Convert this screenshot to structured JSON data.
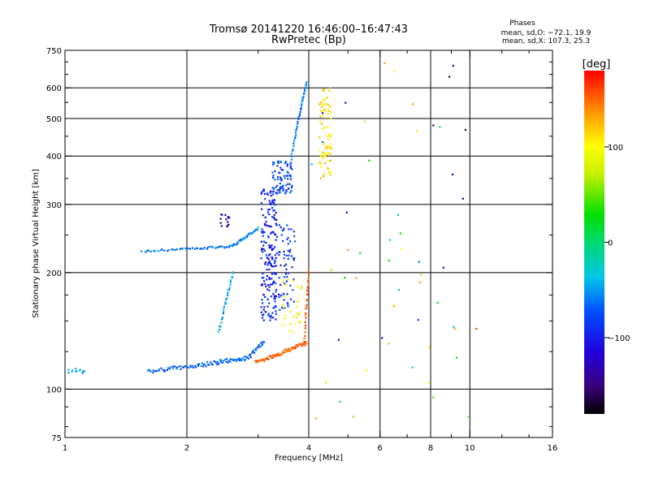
{
  "chart_data": {
    "type": "scatter",
    "title": "Tromsø 20141220 16:46:00–16:47:43",
    "subtitle": "RwPretec (Bp)",
    "stats": {
      "heading": "Phases",
      "line1": "mean, sd,O: −72.1, 19.9",
      "line2": "mean, sd,X: 107.3, 25.3"
    },
    "xlabel": "Frequency [MHz]",
    "ylabel": "Stationary phase Virtual Height [km]",
    "xscale": "log2",
    "yscale": "log",
    "xlim": [
      1,
      16
    ],
    "ylim": [
      75,
      750
    ],
    "xticks": [
      1,
      2,
      4,
      6,
      8,
      10,
      16
    ],
    "xtick_labels": [
      "1",
      "2",
      "4",
      "6",
      "8",
      "10",
      "16"
    ],
    "xminor": [
      3,
      5,
      7,
      9,
      12,
      14
    ],
    "yticks": [
      75,
      100,
      200,
      300,
      400,
      500,
      600,
      750
    ],
    "ytick_labels": [
      "75",
      "100",
      "200",
      "300",
      "400",
      "500",
      "600",
      "750"
    ],
    "yminor": [
      80,
      90,
      125,
      150,
      175,
      250,
      350,
      450,
      550,
      650,
      700
    ],
    "xgrid": [
      2,
      4,
      6,
      8,
      10
    ],
    "ygrid": [
      100,
      200,
      300,
      400,
      500,
      600
    ],
    "colorbar": {
      "label": "[deg]",
      "min": -180,
      "max": 180,
      "ticks": [
        -100,
        0,
        100
      ],
      "tick_labels": [
        "−100",
        "0",
        "100"
      ]
    },
    "point_groups": [
      {
        "name": "left low trace",
        "f0": 1.0,
        "f1": 1.12,
        "h0": 112,
        "h1": 111,
        "n": 14,
        "phase": -45
      },
      {
        "name": "lower O-trace",
        "f0": 1.6,
        "f1": 2.85,
        "h0": 111,
        "h1": 121,
        "n": 90,
        "phase": -65
      },
      {
        "name": "lower O-trace knee",
        "f0": 2.85,
        "f1": 3.1,
        "h0": 121,
        "h1": 133,
        "n": 18,
        "phase": -70
      },
      {
        "name": "X-trace",
        "f0": 2.95,
        "f1": 3.95,
        "h0": 117,
        "h1": 132,
        "n": 70,
        "phase": 150
      },
      {
        "name": "X-trace rise",
        "f0": 3.9,
        "f1": 4.0,
        "h0": 132,
        "h1": 200,
        "n": 25,
        "phase": 155
      },
      {
        "name": "upper O-trace",
        "f0": 1.55,
        "f1": 2.6,
        "h0": 227,
        "h1": 234,
        "n": 50,
        "phase": -62
      },
      {
        "name": "upper O-trace cont",
        "f0": 2.6,
        "f1": 3.0,
        "h0": 235,
        "h1": 260,
        "n": 30,
        "phase": -58
      },
      {
        "name": "purple patch",
        "f0": 2.42,
        "f1": 2.55,
        "h0": 258,
        "h1": 285,
        "n": 14,
        "phase": -140
      },
      {
        "name": "spread column A",
        "f0": 3.05,
        "f1": 3.35,
        "h0": 150,
        "h1": 330,
        "n": 190,
        "phase": -95
      },
      {
        "name": "spread column B",
        "f0": 3.3,
        "f1": 3.7,
        "h0": 160,
        "h1": 270,
        "n": 70,
        "phase": -85
      },
      {
        "name": "upper cluster",
        "f0": 3.25,
        "f1": 3.65,
        "h0": 320,
        "h1": 390,
        "n": 80,
        "phase": -78
      },
      {
        "name": "upper trace",
        "f0": 3.6,
        "f1": 3.95,
        "h0": 380,
        "h1": 620,
        "n": 40,
        "phase": -60
      },
      {
        "name": "X upper column",
        "f0": 4.25,
        "f1": 4.55,
        "h0": 350,
        "h1": 600,
        "n": 80,
        "phase": 110
      },
      {
        "name": "X mid column",
        "f0": 3.45,
        "f1": 3.85,
        "h0": 140,
        "h1": 195,
        "n": 30,
        "phase": 95
      },
      {
        "name": "cyan side trace",
        "f0": 2.4,
        "f1": 2.6,
        "h0": 140,
        "h1": 200,
        "n": 30,
        "phase": -45
      },
      {
        "name": "scattered echoes",
        "f0": 4.0,
        "f1": 10.5,
        "h0": 80,
        "h1": 700,
        "n": 55,
        "phase": 0
      }
    ]
  }
}
